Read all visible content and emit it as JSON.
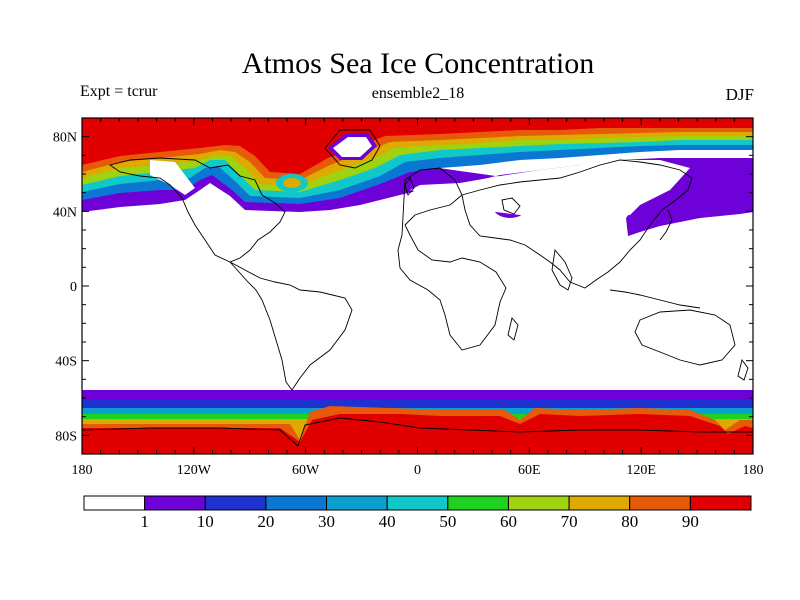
{
  "header": {
    "title": "Atmos Sea Ice Concentration",
    "left_label": "Expt = tcrur",
    "center_label": "ensemble2_18",
    "right_label": "DJF"
  },
  "map": {
    "lat_ticks": [
      "80N",
      "40N",
      "0",
      "40S",
      "80S"
    ],
    "lon_ticks": [
      "180",
      "120W",
      "60W",
      "0",
      "60E",
      "120E",
      "180"
    ]
  },
  "colorbar": {
    "labels": [
      "1",
      "10",
      "20",
      "30",
      "40",
      "50",
      "60",
      "70",
      "80",
      "90"
    ],
    "colors": [
      "#ffffff",
      "#6e00d8",
      "#1e32d2",
      "#0a78d2",
      "#0aa0cd",
      "#10c8c8",
      "#1ed21e",
      "#a0d20f",
      "#dcaa00",
      "#e65a0a",
      "#e10000"
    ]
  }
}
